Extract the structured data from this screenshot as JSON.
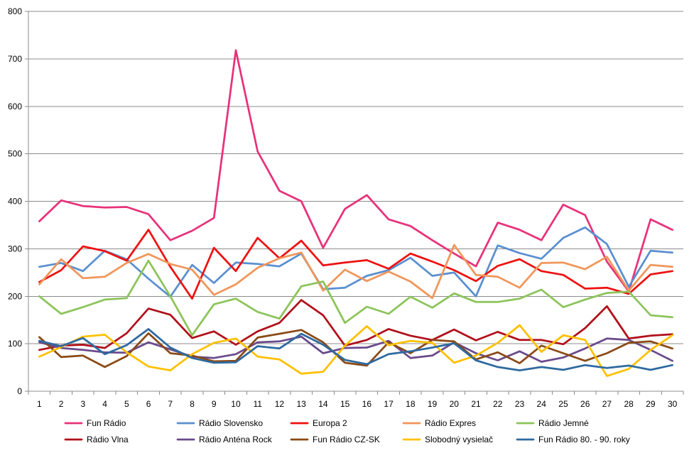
{
  "chart_data": {
    "type": "line",
    "title": "",
    "xlabel": "",
    "ylabel": "",
    "ylim": [
      0,
      800
    ],
    "yticks": [
      "0",
      "100",
      "200",
      "300",
      "400",
      "500",
      "600",
      "700",
      "800"
    ],
    "grid": "horizontal",
    "legend_position": "bottom",
    "categories": [
      "1",
      "2",
      "3",
      "4",
      "5",
      "6",
      "7",
      "8",
      "9",
      "10",
      "11",
      "12",
      "13",
      "14",
      "15",
      "16",
      "17",
      "18",
      "19",
      "20",
      "21",
      "22",
      "23",
      "24",
      "25",
      "26",
      "27",
      "28",
      "29",
      "30"
    ],
    "series": [
      {
        "name": "Fun Rádio",
        "color": "#e8327a",
        "values": [
          358,
          402,
          390,
          387,
          388,
          373,
          318,
          338,
          365,
          718,
          505,
          422,
          400,
          302,
          384,
          413,
          362,
          348,
          318,
          290,
          263,
          355,
          340,
          318,
          393,
          371,
          273,
          210,
          362,
          340
        ]
      },
      {
        "name": "Rádio Slovensko",
        "color": "#5b8fd0",
        "values": [
          262,
          270,
          253,
          296,
          278,
          237,
          199,
          266,
          228,
          271,
          268,
          263,
          290,
          215,
          218,
          243,
          255,
          281,
          243,
          250,
          200,
          307,
          291,
          279,
          323,
          345,
          310,
          220,
          296,
          292
        ]
      },
      {
        "name": "Europa 2",
        "color": "#ee1111",
        "values": [
          230,
          255,
          305,
          295,
          275,
          340,
          262,
          195,
          302,
          253,
          323,
          280,
          317,
          265,
          271,
          276,
          258,
          290,
          273,
          255,
          232,
          264,
          278,
          253,
          245,
          216,
          218,
          205,
          246,
          253
        ]
      },
      {
        "name": "Rádio Expres",
        "color": "#f0965a",
        "values": [
          225,
          278,
          238,
          241,
          270,
          289,
          268,
          256,
          203,
          225,
          260,
          280,
          292,
          212,
          256,
          232,
          252,
          231,
          196,
          308,
          245,
          241,
          218,
          270,
          271,
          257,
          283,
          212,
          266,
          262
        ]
      },
      {
        "name": "Rádio Jemné",
        "color": "#8cc45a",
        "values": [
          200,
          163,
          177,
          193,
          196,
          275,
          200,
          118,
          183,
          195,
          167,
          153,
          221,
          231,
          144,
          178,
          163,
          199,
          176,
          206,
          188,
          188,
          195,
          214,
          177,
          193,
          207,
          210,
          160,
          156
        ]
      },
      {
        "name": "Rádio Vlna",
        "color": "#b0101a",
        "values": [
          87,
          96,
          98,
          91,
          122,
          174,
          161,
          112,
          126,
          98,
          126,
          144,
          192,
          160,
          96,
          108,
          131,
          117,
          108,
          130,
          107,
          125,
          108,
          108,
          99,
          133,
          179,
          111,
          117,
          120
        ]
      },
      {
        "name": "Rádio Anténa Rock",
        "color": "#6a4a8c",
        "values": [
          103,
          91,
          87,
          82,
          81,
          103,
          88,
          73,
          70,
          78,
          103,
          105,
          115,
          80,
          91,
          92,
          106,
          70,
          75,
          103,
          80,
          65,
          84,
          62,
          71,
          90,
          111,
          108,
          87,
          64
        ]
      },
      {
        "name": "Fun Rádio CZ-SK",
        "color": "#8a4a16",
        "values": [
          114,
          72,
          75,
          51,
          74,
          122,
          80,
          75,
          63,
          64,
          113,
          121,
          129,
          103,
          60,
          54,
          103,
          80,
          108,
          105,
          67,
          82,
          59,
          96,
          80,
          64,
          80,
          102,
          105,
          90
        ]
      },
      {
        "name": "Slobodný vysielač",
        "color": "#ffc000",
        "values": [
          73,
          93,
          115,
          119,
          82,
          52,
          44,
          78,
          102,
          111,
          73,
          67,
          37,
          41,
          96,
          137,
          97,
          106,
          102,
          60,
          75,
          102,
          139,
          83,
          118,
          108,
          32,
          47,
          87,
          118
        ]
      },
      {
        "name": "Fun Rádio 80. - 90. roky",
        "color": "#2e6aa0",
        "values": [
          106,
          95,
          112,
          78,
          97,
          131,
          92,
          70,
          60,
          61,
          95,
          90,
          121,
          98,
          66,
          57,
          78,
          84,
          92,
          101,
          65,
          51,
          44,
          51,
          45,
          55,
          49,
          54,
          45,
          55
        ]
      }
    ]
  }
}
